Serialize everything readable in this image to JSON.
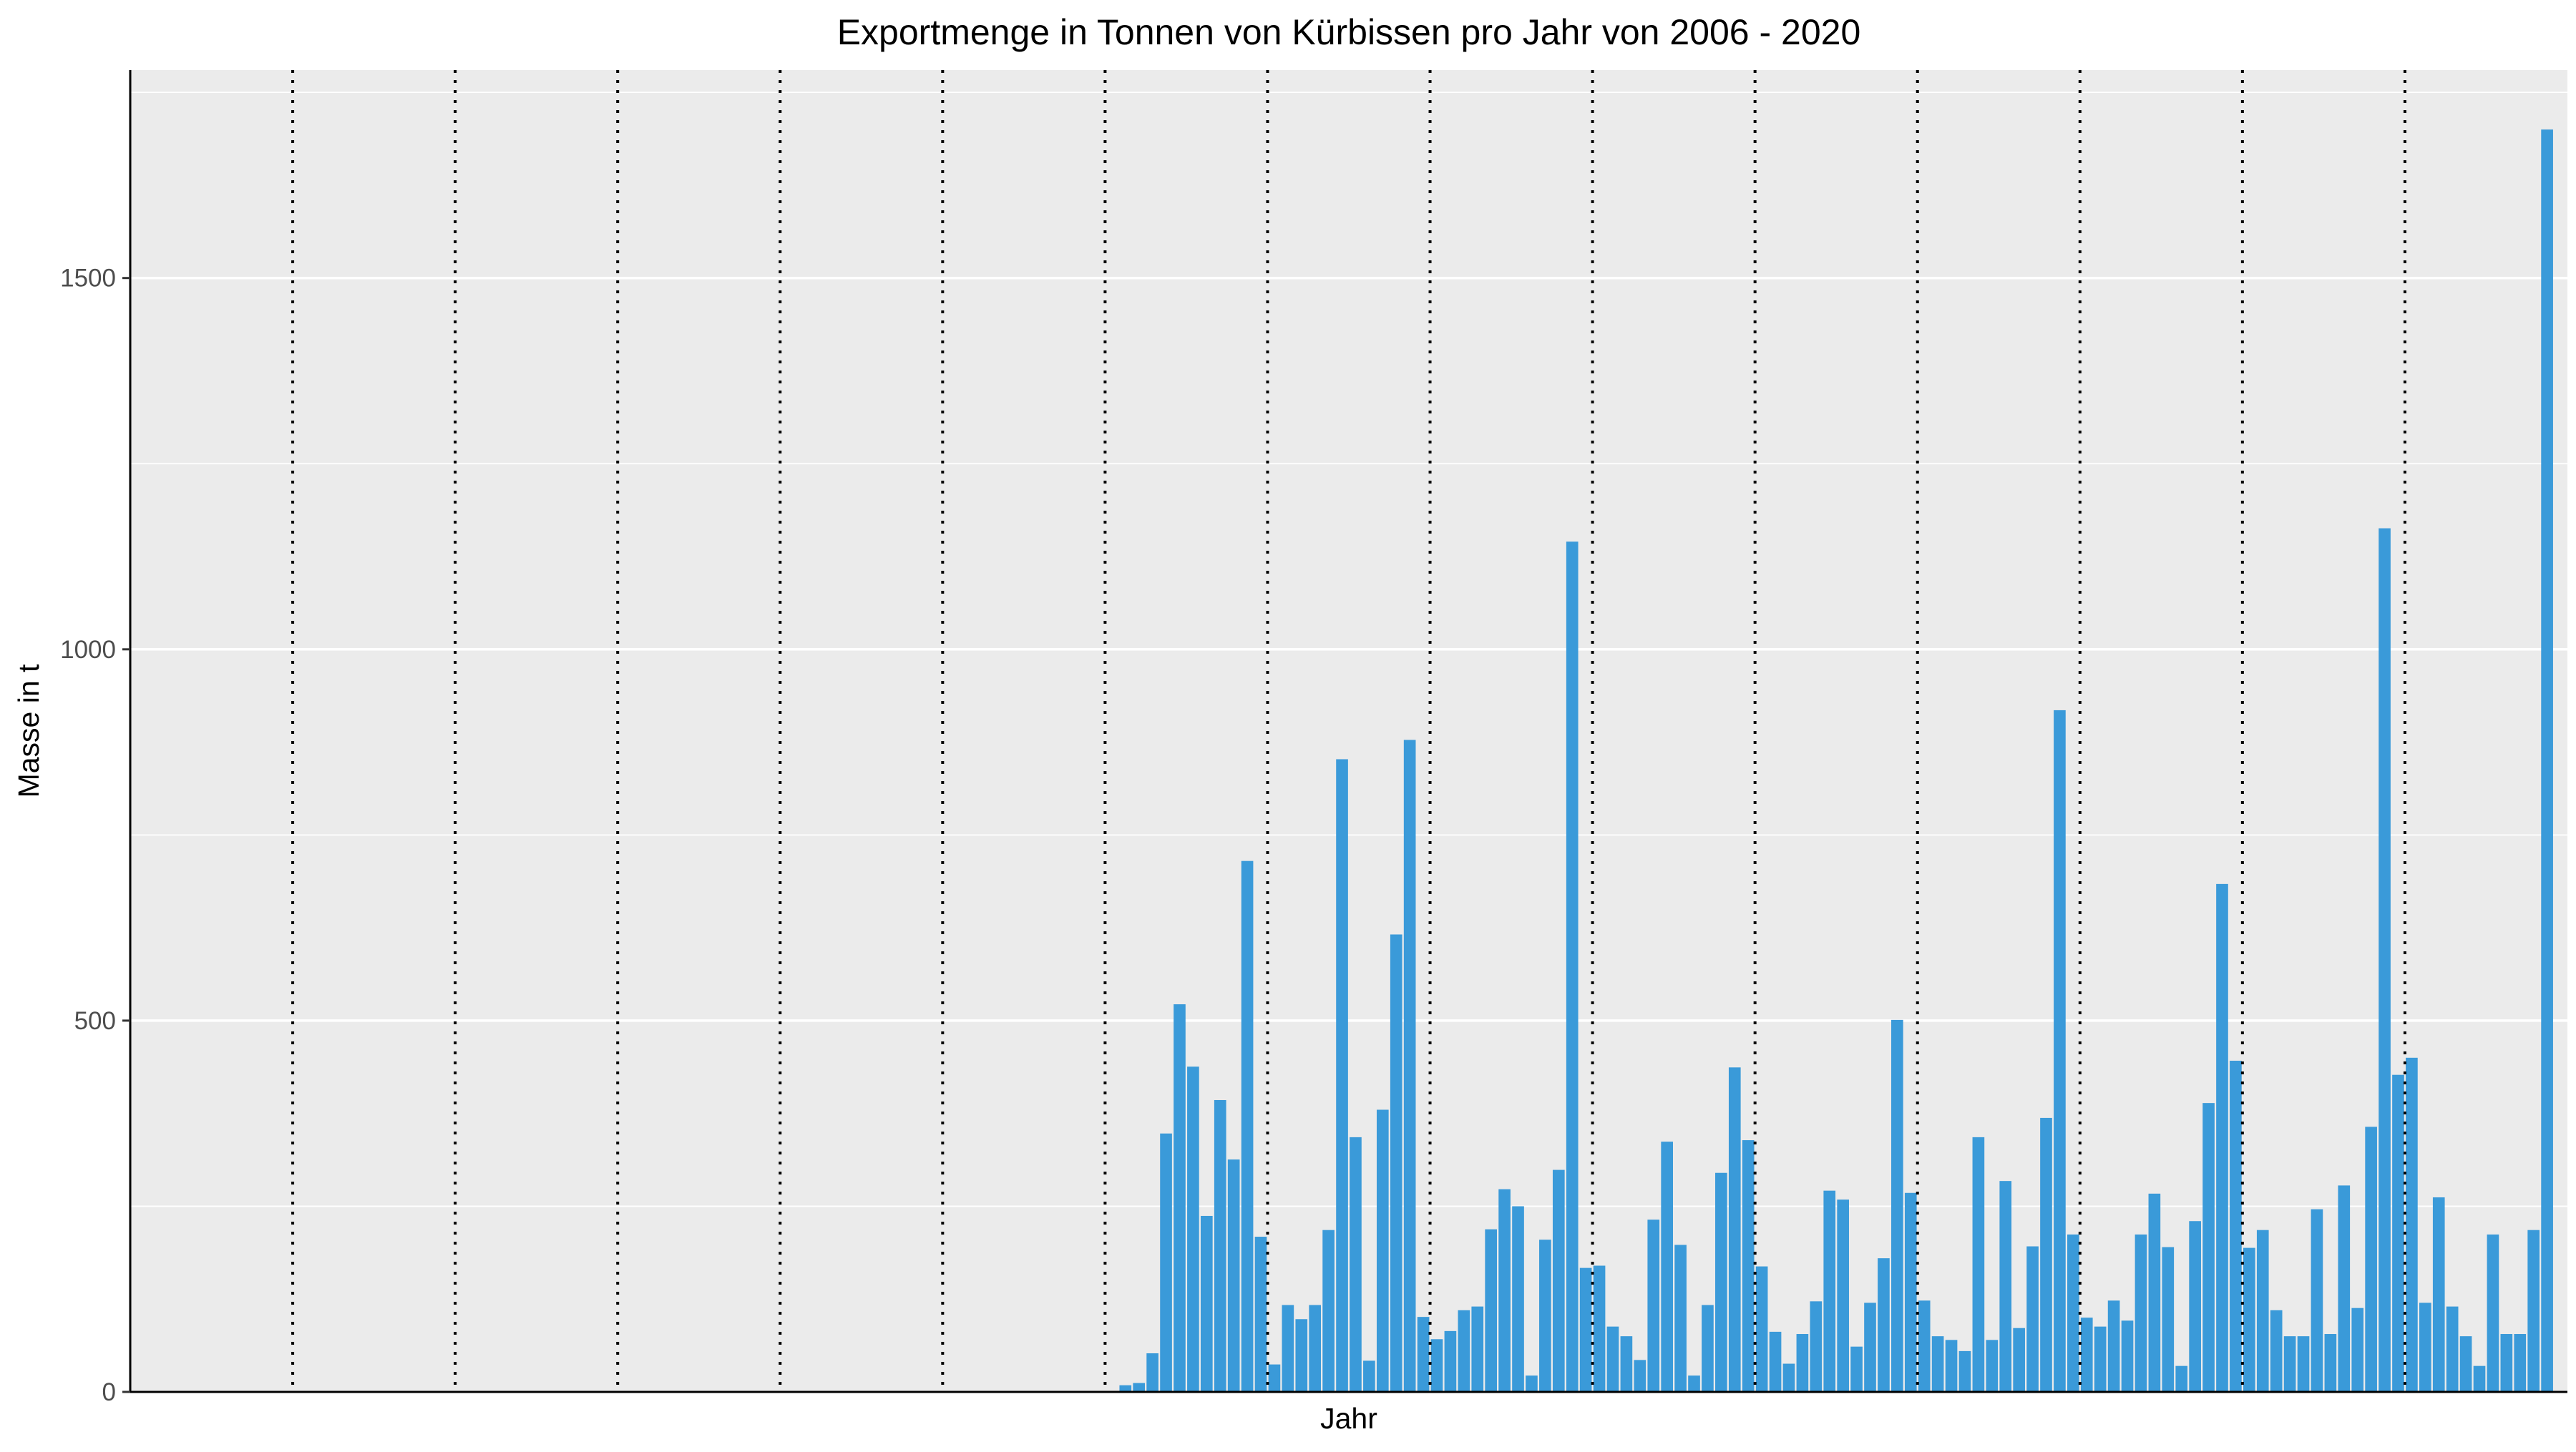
{
  "chart_data": {
    "type": "bar",
    "title": "Exportmenge in Tonnen von Kürbissen pro Jahr von 2006 - 2020",
    "xlabel": "Jahr",
    "ylabel": "Masse in t",
    "ylim": [
      0,
      1780
    ],
    "yticks": [
      0,
      500,
      1000,
      1500
    ],
    "ytick_labels": [
      "0",
      "500",
      "1000",
      "1500"
    ],
    "grid": true,
    "legend": "none",
    "bar_color": "#3a9ad9",
    "panel_background": "#ebebeb",
    "year_separators": "dotted vertical lines at each year boundary",
    "periods_total": 180,
    "first_nonzero_period": 73,
    "values": [
      9,
      12,
      52,
      348,
      522,
      438,
      237,
      393,
      313,
      715,
      209,
      37,
      117,
      98,
      117,
      218,
      852,
      343,
      42,
      380,
      616,
      878,
      101,
      71,
      82,
      110,
      115,
      219,
      273,
      250,
      22,
      205,
      299,
      1145,
      167,
      170,
      88,
      75,
      43,
      232,
      337,
      198,
      22,
      117,
      295,
      437,
      339,
      169,
      81,
      38,
      78,
      122,
      271,
      259,
      61,
      120,
      180,
      501,
      268,
      123,
      75,
      70,
      55,
      343,
      70,
      284,
      86,
      196,
      369,
      918,
      212,
      100,
      88,
      123,
      96,
      212,
      267,
      195,
      35,
      230,
      389,
      684,
      446,
      194,
      218,
      110,
      75,
      75,
      246,
      78,
      278,
      113,
      357,
      1163,
      427,
      450,
      120,
      262,
      115,
      75,
      35,
      212,
      78,
      78,
      218,
      1700
    ]
  }
}
